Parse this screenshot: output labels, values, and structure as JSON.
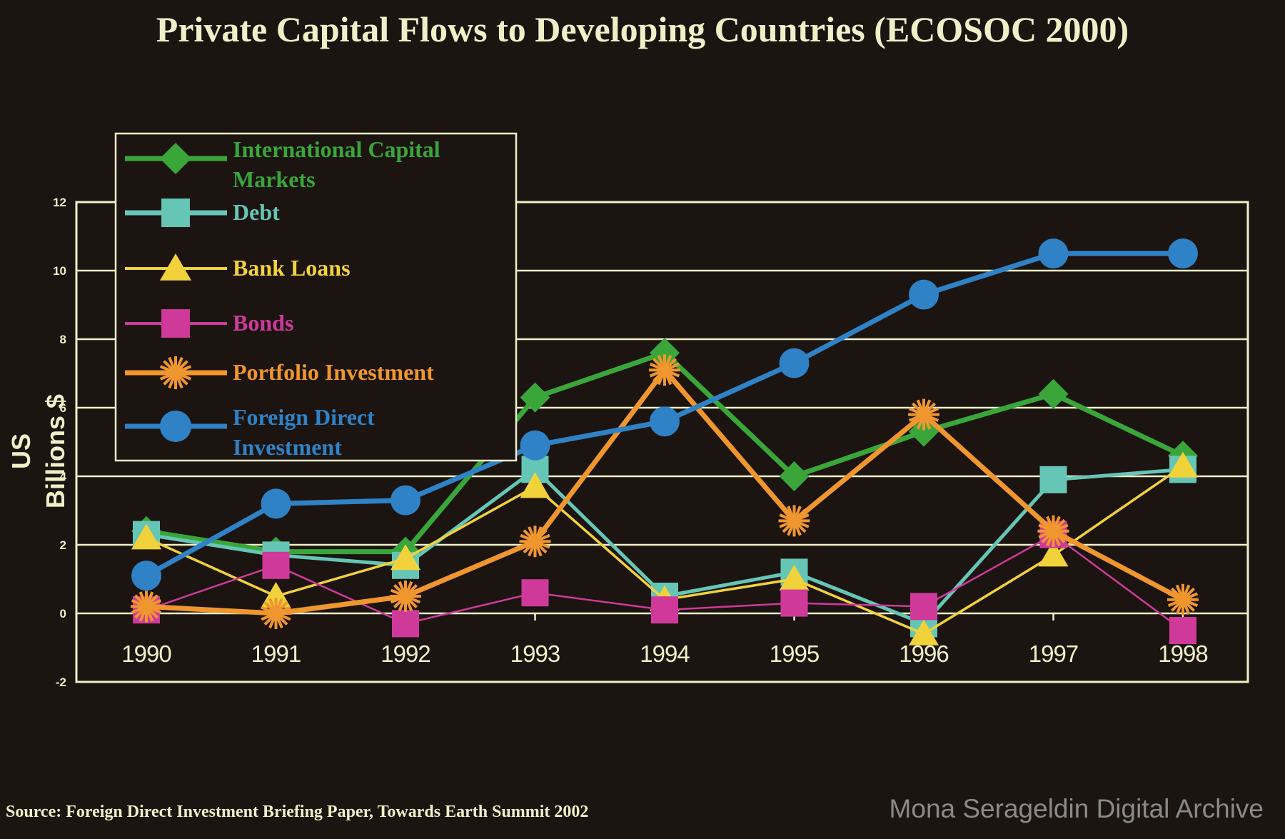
{
  "chart_data": {
    "type": "line",
    "title": "Private Capital Flows to Developing Countries (ECOSOC 2000)",
    "xlabel": "",
    "ylabel": "US Billions $",
    "x": [
      "1990",
      "1991",
      "1992",
      "1993",
      "1994",
      "1995",
      "1996",
      "1997",
      "1998"
    ],
    "yticks": [
      "-2",
      "0",
      "2",
      "4",
      "6",
      "8",
      "10",
      "12"
    ],
    "ylim": [
      -2,
      12
    ],
    "grid": true,
    "legend_position": "top-left",
    "series": [
      {
        "name": "International Capital Markets",
        "color": "#3aa63a",
        "marker": "diamond",
        "values": [
          2.4,
          1.8,
          1.8,
          6.3,
          7.6,
          4.0,
          5.3,
          6.4,
          4.6
        ]
      },
      {
        "name": "Debt",
        "color": "#66c6b6",
        "marker": "square",
        "values": [
          2.3,
          1.7,
          1.4,
          4.2,
          0.5,
          1.2,
          -0.3,
          3.9,
          4.2
        ]
      },
      {
        "name": "Bank Loans",
        "color": "#f2d23a",
        "marker": "triangle",
        "values": [
          2.2,
          0.5,
          1.6,
          3.7,
          0.4,
          1.0,
          -0.6,
          1.7,
          4.3
        ]
      },
      {
        "name": "Bonds",
        "color": "#cf3a9a",
        "marker": "square",
        "values": [
          0.1,
          1.4,
          -0.3,
          0.6,
          0.1,
          0.3,
          0.2,
          2.3,
          -0.5
        ]
      },
      {
        "name": "Portfolio Investment",
        "color": "#f0962e",
        "marker": "star",
        "values": [
          0.2,
          0.0,
          0.5,
          2.1,
          7.1,
          2.7,
          5.8,
          2.4,
          0.4
        ]
      },
      {
        "name": "Foreign Direct Investment",
        "color": "#2f82c6",
        "marker": "circle",
        "values": [
          1.1,
          3.2,
          3.3,
          4.9,
          5.6,
          7.3,
          9.3,
          10.5,
          10.5
        ]
      }
    ]
  },
  "legend": {
    "labels": [
      [
        "International Capital",
        "Markets"
      ],
      [
        "Debt"
      ],
      [
        "Bank Loans"
      ],
      [
        "Bonds"
      ],
      [
        "Portfolio Investment"
      ],
      [
        "Foreign Direct",
        "Investment"
      ]
    ]
  },
  "axis": {
    "ylabel_line1": "US",
    "ylabel_line2": "Billions $"
  },
  "footer": {
    "source": "Source: Foreign Direct Investment Briefing Paper, Towards Earth Summit 2002",
    "watermark": "Mona Serageldin Digital Archive"
  },
  "colors": {
    "background": "#1b1411",
    "axis": "#f0f0c8"
  }
}
